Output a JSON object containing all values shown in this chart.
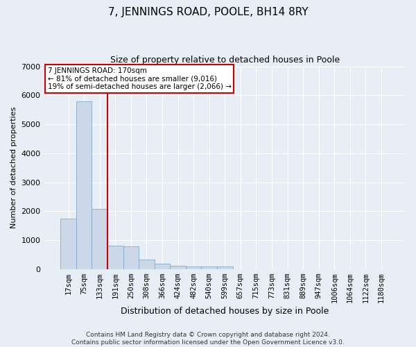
{
  "title": "7, JENNINGS ROAD, POOLE, BH14 8RY",
  "subtitle": "Size of property relative to detached houses in Poole",
  "xlabel": "Distribution of detached houses by size in Poole",
  "ylabel": "Number of detached properties",
  "bar_labels": [
    "17sqm",
    "75sqm",
    "133sqm",
    "191sqm",
    "250sqm",
    "308sqm",
    "366sqm",
    "424sqm",
    "482sqm",
    "540sqm",
    "599sqm",
    "657sqm",
    "715sqm",
    "773sqm",
    "831sqm",
    "889sqm",
    "947sqm",
    "1006sqm",
    "1064sqm",
    "1122sqm",
    "1180sqm"
  ],
  "bar_values": [
    1750,
    5800,
    2080,
    800,
    780,
    340,
    190,
    110,
    90,
    90,
    80,
    0,
    0,
    0,
    0,
    0,
    0,
    0,
    0,
    0,
    0
  ],
  "bar_color": "#ccd8e8",
  "bar_edge_color": "#85a9cc",
  "vline_color": "#cc0000",
  "vline_x": 2.5,
  "annotation_text": "7 JENNINGS ROAD: 170sqm\n← 81% of detached houses are smaller (9,016)\n19% of semi-detached houses are larger (2,066) →",
  "annotation_box_facecolor": "#ffffff",
  "annotation_box_edgecolor": "#cc0000",
  "ylim": [
    0,
    7000
  ],
  "yticks": [
    0,
    1000,
    2000,
    3000,
    4000,
    5000,
    6000,
    7000
  ],
  "footer_line1": "Contains HM Land Registry data © Crown copyright and database right 2024.",
  "footer_line2": "Contains public sector information licensed under the Open Government Licence v3.0.",
  "bg_color": "#e8eef5",
  "plot_bg_color": "#e8eef5",
  "grid_color": "#ffffff",
  "title_fontsize": 11,
  "subtitle_fontsize": 9,
  "ylabel_fontsize": 8,
  "xlabel_fontsize": 9,
  "tick_fontsize": 7.5,
  "footer_fontsize": 6.5
}
